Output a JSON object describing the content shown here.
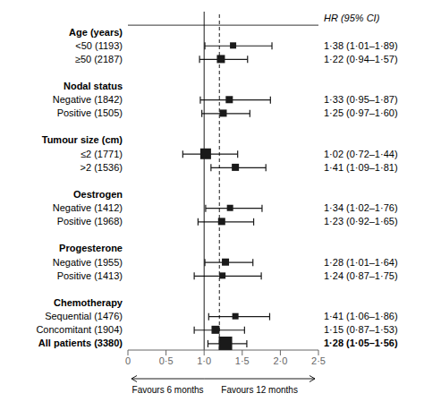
{
  "chart_data": {
    "type": "forest",
    "column_label": "HR (95% CI)",
    "color": "#1a1a1a",
    "groups": [
      {
        "header": "Age (years)",
        "rows": [
          {
            "label": "<50 (1193)",
            "value": 1.38,
            "ci_lo": 1.01,
            "ci_hi": 1.89,
            "value_label": "1·38 (1·01–1·89)",
            "size": 7
          },
          {
            "label": "≥50 (2187)",
            "value": 1.22,
            "ci_lo": 0.94,
            "ci_hi": 1.57,
            "value_label": "1·22 (0·94–1·57)",
            "size": 9
          }
        ]
      },
      {
        "header": "Nodal status",
        "rows": [
          {
            "label": "Negative (1842)",
            "value": 1.33,
            "ci_lo": 0.95,
            "ci_hi": 1.87,
            "value_label": "1·33 (0·95–1·87)",
            "size": 8
          },
          {
            "label": "Positive (1505)",
            "value": 1.25,
            "ci_lo": 0.97,
            "ci_hi": 1.6,
            "value_label": "1·25 (0·97–1·60)",
            "size": 8
          }
        ]
      },
      {
        "header": "Tumour size (cm)",
        "rows": [
          {
            "label": "≤2 (1771)",
            "value": 1.02,
            "ci_lo": 0.72,
            "ci_hi": 1.44,
            "value_label": "1·02 (0·72–1·44)",
            "size": 12
          },
          {
            "label": ">2 (1536)",
            "value": 1.41,
            "ci_lo": 1.09,
            "ci_hi": 1.81,
            "value_label": "1·41 (1·09–1·81)",
            "size": 8
          }
        ]
      },
      {
        "header": "Oestrogen",
        "rows": [
          {
            "label": "Negative (1412)",
            "value": 1.34,
            "ci_lo": 1.02,
            "ci_hi": 1.76,
            "value_label": "1·34 (1·02–1·76)",
            "size": 7
          },
          {
            "label": "Positive (1968)",
            "value": 1.23,
            "ci_lo": 0.92,
            "ci_hi": 1.65,
            "value_label": "1·23 (0·92–1·65)",
            "size": 8
          }
        ]
      },
      {
        "header": "Progesterone",
        "rows": [
          {
            "label": "Negative (1955)",
            "value": 1.28,
            "ci_lo": 1.01,
            "ci_hi": 1.64,
            "value_label": "1·28 (1·01–1·64)",
            "size": 8
          },
          {
            "label": "Positive (1413)",
            "value": 1.24,
            "ci_lo": 0.87,
            "ci_hi": 1.75,
            "value_label": "1·24 (0·87–1·75)",
            "size": 7
          }
        ]
      },
      {
        "header": "Chemotherapy",
        "rows": [
          {
            "label": "Sequential (1476)",
            "value": 1.41,
            "ci_lo": 1.06,
            "ci_hi": 1.86,
            "value_label": "1·41 (1·06–1·86)",
            "size": 7
          },
          {
            "label": "Concomitant (1904)",
            "value": 1.15,
            "ci_lo": 0.87,
            "ci_hi": 1.53,
            "value_label": "1·15 (0·87–1·53)",
            "size": 9
          }
        ]
      },
      {
        "header": null,
        "rows": [
          {
            "label": "All patients (3380)",
            "value": 1.28,
            "ci_lo": 1.05,
            "ci_hi": 1.56,
            "value_label": "1·28 (1·05–1·56)",
            "size": 15
          }
        ]
      }
    ],
    "xlim": [
      0,
      2.5
    ],
    "xticks": [
      0,
      {
        "value": 0.5,
        "label": "0·5"
      },
      {
        "value": 1.0,
        "label": "1·0"
      },
      {
        "value": 1.5,
        "label": "1·5"
      },
      {
        "value": 2.0,
        "label": "2·0"
      },
      {
        "value": 2.5,
        "label": "2·5"
      }
    ],
    "vlines": [
      {
        "value": 1.0,
        "line_style": "solid"
      },
      {
        "value": 1.2,
        "line_style": "dashed"
      }
    ],
    "annotations": [
      "Favours 6 months",
      "Favours 12 months"
    ]
  }
}
